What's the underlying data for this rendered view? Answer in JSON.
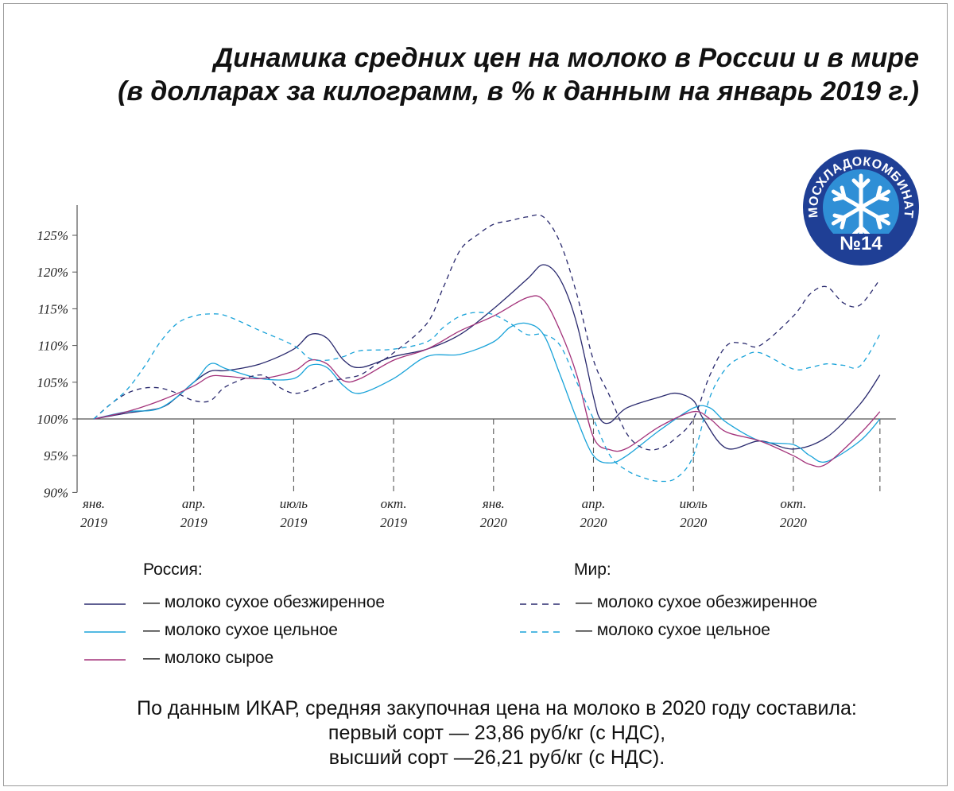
{
  "title": {
    "line1": "Динамика средних цен на молоко в России и в мире",
    "line2": "(в долларах за килограмм, в % к данным на январь 2019 г.)"
  },
  "logo": {
    "ring_text": "МОСХЛАДОКОМБИНАТ",
    "number_text": "№14",
    "colors": {
      "ring": "#1f3f95",
      "inner": "#2f8fd6",
      "snowflake": "#ffffff"
    }
  },
  "legend": {
    "russia_heading": "Россия:",
    "world_heading": "Мир:",
    "russia_items": [
      {
        "label": "— молоко сухое обезжиренное",
        "color": "#2a2a6e",
        "dash": "solid"
      },
      {
        "label": "— молоко сухое цельное",
        "color": "#1aa3d9",
        "dash": "solid"
      },
      {
        "label": "— молоко сырое",
        "color": "#a3327a",
        "dash": "solid"
      }
    ],
    "world_items": [
      {
        "label": "— молоко сухое обезжиренное",
        "color": "#2a2a6e",
        "dash": "dashed"
      },
      {
        "label": "— молоко сухое цельное",
        "color": "#1aa3d9",
        "dash": "dashed"
      }
    ]
  },
  "footer": {
    "line1": "По данным ИКАР, средняя закупочная цена на молоко в 2020 году составила:",
    "line2": "первый сорт — 23,86 руб/кг (с НДС),",
    "line3": "высший сорт —26,21 руб/кг (с НДС)."
  },
  "chart_data": {
    "type": "line",
    "ylim": [
      90,
      130
    ],
    "xlim": [
      0,
      23.6
    ],
    "baseline": 100,
    "yticks": [
      {
        "value": 90,
        "label": "90%"
      },
      {
        "value": 95,
        "label": "95%"
      },
      {
        "value": 100,
        "label": "100%"
      },
      {
        "value": 105,
        "label": "105%"
      },
      {
        "value": 110,
        "label": "110%"
      },
      {
        "value": 115,
        "label": "115%"
      },
      {
        "value": 120,
        "label": "120%"
      },
      {
        "value": 125,
        "label": "125%"
      }
    ],
    "xticks": [
      {
        "x": 0,
        "month": "янв.",
        "year": "2019"
      },
      {
        "x": 3,
        "month": "апр.",
        "year": "2019"
      },
      {
        "x": 6,
        "month": "июль",
        "year": "2019"
      },
      {
        "x": 9,
        "month": "окт.",
        "year": "2019"
      },
      {
        "x": 12,
        "month": "янв.",
        "year": "2020"
      },
      {
        "x": 15,
        "month": "апр.",
        "year": "2020"
      },
      {
        "x": 18,
        "month": "июль",
        "year": "2020"
      },
      {
        "x": 21,
        "month": "окт.",
        "year": "2020"
      },
      {
        "x": 23.6,
        "month": "",
        "year": ""
      }
    ],
    "series": [
      {
        "name": "Россия — молоко сухое обезжиренное",
        "color": "#2a2a6e",
        "dash": "solid",
        "points": [
          [
            0,
            100
          ],
          [
            1,
            100.8
          ],
          [
            2,
            101.5
          ],
          [
            2.5,
            103
          ],
          [
            3,
            105
          ],
          [
            3.5,
            106.5
          ],
          [
            4,
            106.6
          ],
          [
            5,
            107.5
          ],
          [
            6,
            109.5
          ],
          [
            6.5,
            111.5
          ],
          [
            7,
            111
          ],
          [
            7.5,
            108
          ],
          [
            8,
            107
          ],
          [
            9,
            108.5
          ],
          [
            10,
            109.5
          ],
          [
            11,
            111.5
          ],
          [
            12,
            115
          ],
          [
            13,
            119
          ],
          [
            13.5,
            121
          ],
          [
            14,
            119
          ],
          [
            14.5,
            113
          ],
          [
            15,
            103
          ],
          [
            15.2,
            100
          ],
          [
            15.5,
            99.5
          ],
          [
            16,
            101.5
          ],
          [
            17,
            103
          ],
          [
            17.5,
            103.5
          ],
          [
            18,
            102.5
          ],
          [
            18.3,
            100
          ],
          [
            19,
            96
          ],
          [
            20,
            97
          ],
          [
            21,
            95.9
          ],
          [
            22,
            97.5
          ],
          [
            23,
            102
          ],
          [
            23.6,
            106
          ]
        ]
      },
      {
        "name": "Россия — молоко сухое цельное",
        "color": "#1aa3d9",
        "dash": "solid",
        "points": [
          [
            0,
            100
          ],
          [
            1,
            101
          ],
          [
            2,
            101.5
          ],
          [
            3,
            105
          ],
          [
            3.5,
            107.5
          ],
          [
            4,
            106.8
          ],
          [
            5,
            105.5
          ],
          [
            6,
            105.5
          ],
          [
            6.5,
            107.3
          ],
          [
            7,
            107
          ],
          [
            7.5,
            104.5
          ],
          [
            8,
            103.5
          ],
          [
            9,
            105.5
          ],
          [
            10,
            108.5
          ],
          [
            11,
            108.8
          ],
          [
            12,
            110.5
          ],
          [
            12.5,
            112.5
          ],
          [
            13,
            113
          ],
          [
            13.5,
            111.5
          ],
          [
            14,
            106
          ],
          [
            14.5,
            100
          ],
          [
            15,
            95
          ],
          [
            15.5,
            94
          ],
          [
            16,
            95
          ],
          [
            17,
            98.5
          ],
          [
            18,
            101.5
          ],
          [
            18.5,
            101.5
          ],
          [
            19,
            99.5
          ],
          [
            20,
            97
          ],
          [
            21,
            96.5
          ],
          [
            21.5,
            95
          ],
          [
            22,
            94.2
          ],
          [
            23,
            97
          ],
          [
            23.6,
            100
          ]
        ]
      },
      {
        "name": "Россия — молоко сырое",
        "color": "#a3327a",
        "dash": "solid",
        "points": [
          [
            0,
            100
          ],
          [
            1,
            101
          ],
          [
            2,
            102.5
          ],
          [
            3,
            104.5
          ],
          [
            3.5,
            105.8
          ],
          [
            4,
            105.8
          ],
          [
            5,
            105.5
          ],
          [
            6,
            106.5
          ],
          [
            6.5,
            108
          ],
          [
            7,
            107.5
          ],
          [
            7.5,
            105.2
          ],
          [
            8,
            105.5
          ],
          [
            9,
            108
          ],
          [
            10,
            109.5
          ],
          [
            11,
            112
          ],
          [
            12,
            114
          ],
          [
            13,
            116.5
          ],
          [
            13.5,
            116.2
          ],
          [
            14,
            112
          ],
          [
            14.5,
            106
          ],
          [
            15,
            97.5
          ],
          [
            15.5,
            95.8
          ],
          [
            16,
            96
          ],
          [
            17,
            99
          ],
          [
            18,
            101
          ],
          [
            18.5,
            100
          ],
          [
            19,
            98.2
          ],
          [
            20,
            97
          ],
          [
            21,
            95
          ],
          [
            21.5,
            93.8
          ],
          [
            22,
            93.9
          ],
          [
            23,
            98
          ],
          [
            23.6,
            101
          ]
        ]
      },
      {
        "name": "Мир — молоко сухое обезжиренное",
        "color": "#2a2a6e",
        "dash": "dashed",
        "points": [
          [
            0,
            100
          ],
          [
            0.5,
            102
          ],
          [
            1,
            103.5
          ],
          [
            1.5,
            104.2
          ],
          [
            2,
            104.2
          ],
          [
            2.5,
            103.5
          ],
          [
            3,
            102.5
          ],
          [
            3.5,
            102.5
          ],
          [
            4,
            104.5
          ],
          [
            5,
            106
          ],
          [
            5.5,
            104.5
          ],
          [
            6,
            103.5
          ],
          [
            6.5,
            104
          ],
          [
            7,
            105
          ],
          [
            7.5,
            105.5
          ],
          [
            8,
            106
          ],
          [
            8.5,
            107.5
          ],
          [
            9,
            109
          ],
          [
            10,
            113
          ],
          [
            10.5,
            118
          ],
          [
            11,
            123
          ],
          [
            11.5,
            125
          ],
          [
            12,
            126.5
          ],
          [
            12.5,
            127
          ],
          [
            13,
            127.5
          ],
          [
            13.5,
            127.5
          ],
          [
            14,
            124
          ],
          [
            14.5,
            117
          ],
          [
            15,
            108
          ],
          [
            15.5,
            103
          ],
          [
            16,
            98
          ],
          [
            16.5,
            96
          ],
          [
            17,
            96
          ],
          [
            17.5,
            97.5
          ],
          [
            18,
            100
          ],
          [
            18.5,
            106
          ],
          [
            19,
            110
          ],
          [
            19.5,
            110.3
          ],
          [
            20,
            110
          ],
          [
            21,
            114
          ],
          [
            21.5,
            117
          ],
          [
            22,
            118
          ],
          [
            22.5,
            115.8
          ],
          [
            23,
            115.5
          ],
          [
            23.6,
            119
          ]
        ]
      },
      {
        "name": "Мир — молоко сухое цельное",
        "color": "#1aa3d9",
        "dash": "dashed",
        "points": [
          [
            0,
            100
          ],
          [
            0.5,
            102
          ],
          [
            1,
            104
          ],
          [
            1.5,
            107
          ],
          [
            2,
            110.5
          ],
          [
            2.5,
            113
          ],
          [
            3,
            114
          ],
          [
            3.5,
            114.3
          ],
          [
            4,
            114
          ],
          [
            5,
            112
          ],
          [
            6,
            110
          ],
          [
            6.5,
            108.2
          ],
          [
            7,
            108
          ],
          [
            7.5,
            108.5
          ],
          [
            8,
            109.3
          ],
          [
            9,
            109.5
          ],
          [
            10,
            110.5
          ],
          [
            10.5,
            112.5
          ],
          [
            11,
            114
          ],
          [
            11.5,
            114.5
          ],
          [
            12,
            114.2
          ],
          [
            12.5,
            113
          ],
          [
            13,
            111.5
          ],
          [
            13.5,
            111.5
          ],
          [
            14,
            110
          ],
          [
            14.5,
            105
          ],
          [
            15,
            100
          ],
          [
            15.5,
            95
          ],
          [
            16,
            93
          ],
          [
            16.5,
            92
          ],
          [
            17,
            91.5
          ],
          [
            17.5,
            92
          ],
          [
            18,
            95
          ],
          [
            18.5,
            103
          ],
          [
            19,
            107
          ],
          [
            19.5,
            108.5
          ],
          [
            20,
            109
          ],
          [
            21,
            106.8
          ],
          [
            21.5,
            107
          ],
          [
            22,
            107.5
          ],
          [
            22.5,
            107.3
          ],
          [
            23,
            107.2
          ],
          [
            23.6,
            111.5
          ]
        ]
      }
    ]
  }
}
